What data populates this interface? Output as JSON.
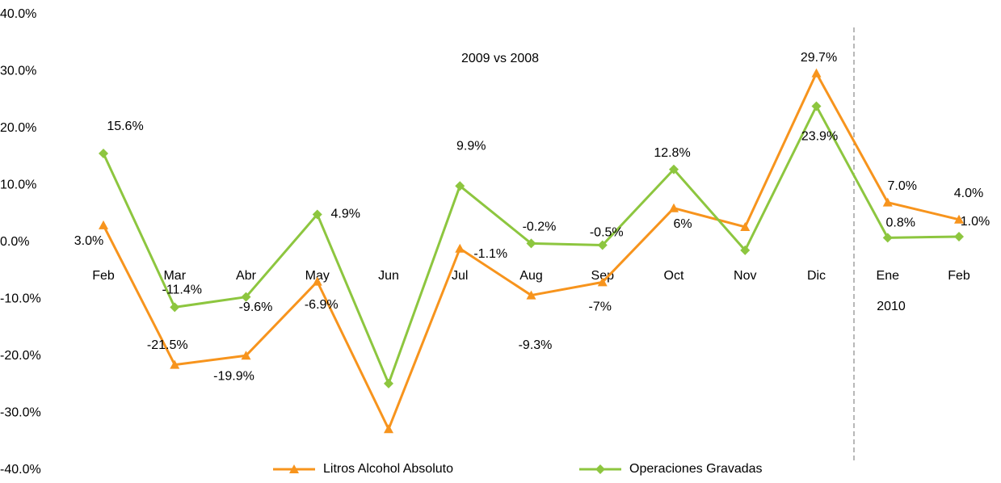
{
  "chart_data": {
    "type": "line",
    "title": "2009 vs 2008",
    "annotations": [
      "2010"
    ],
    "categories": [
      "Feb",
      "Mar",
      "Abr",
      "May",
      "Jun",
      "Jul",
      "Aug",
      "Sep",
      "Oct",
      "Nov",
      "Dic",
      "Ene",
      "Feb"
    ],
    "ylim": [
      -40,
      40
    ],
    "yticks": [
      {
        "value": -40,
        "label": "-40.0%"
      },
      {
        "value": -30,
        "label": "-30.0%"
      },
      {
        "value": -20,
        "label": "-20.0%"
      },
      {
        "value": -10,
        "label": "-10.0%"
      },
      {
        "value": 0,
        "label": "0.0%"
      },
      {
        "value": 10,
        "label": "10.0%"
      },
      {
        "value": 20,
        "label": "20.0%"
      },
      {
        "value": 30,
        "label": "30.0%"
      },
      {
        "value": 40,
        "label": "40.0%"
      }
    ],
    "grid": false,
    "legend": "bottom",
    "series": [
      {
        "name": "Litros Alcohol Absoluto",
        "color": "#f7941d",
        "marker": "triangle",
        "values": [
          3.0,
          -21.5,
          -19.9,
          -6.9,
          -32.8,
          -1.1,
          -9.3,
          -7,
          6,
          2.7,
          29.7,
          7.0,
          4.0
        ],
        "value_labels": [
          "3.0%",
          "-21.5%",
          "-19.9%",
          "-6.9%",
          null,
          "-1.1%",
          "-9.3%",
          "-7%",
          "6%",
          null,
          "29.7%",
          "7.0%",
          "4.0%"
        ]
      },
      {
        "name": "Operaciones Gravadas",
        "color": "#8dc63f",
        "marker": "diamond",
        "values": [
          15.6,
          -11.4,
          -9.6,
          4.9,
          -24.8,
          9.9,
          -0.2,
          -0.5,
          12.8,
          -1.4,
          23.9,
          0.8,
          1.0
        ],
        "value_labels": [
          "15.6%",
          "-11.4%",
          "-9.6%",
          "4.9%",
          null,
          "9.9%",
          "-0.2%",
          "-0.5%",
          "12.8%",
          null,
          "23.9%",
          "0.8%",
          "1.0%"
        ]
      }
    ]
  }
}
